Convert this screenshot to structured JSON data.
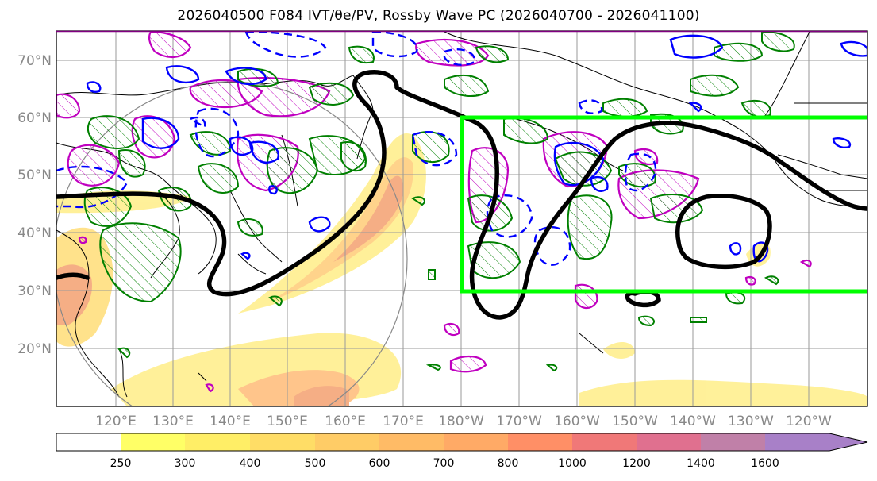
{
  "title": "2026040500 F084 IVT/θe/PV, Rossby Wave PC (2026040700 - 2026041100)",
  "lat_labels": [
    "70°N",
    "60°N",
    "50°N",
    "40°N",
    "30°N",
    "20°N"
  ],
  "lon_labels": [
    "120°E",
    "130°E",
    "140°E",
    "150°E",
    "160°E",
    "170°E",
    "180°W",
    "170°W",
    "160°W",
    "150°W",
    "140°W",
    "130°W",
    "120°W"
  ],
  "colorbar": {
    "ticks": [
      "250",
      "300",
      "400",
      "500",
      "600",
      "700",
      "800",
      "1000",
      "1200",
      "1400",
      "1600"
    ],
    "colors": [
      "#ffff66",
      "#ffee66",
      "#ffdd66",
      "#ffcc66",
      "#ffbb66",
      "#ffaa66",
      "#ff8f66",
      "#f07878",
      "#e0708f",
      "#c080a8",
      "#a880c8"
    ]
  },
  "highlight_box_color": "#00ff00"
}
